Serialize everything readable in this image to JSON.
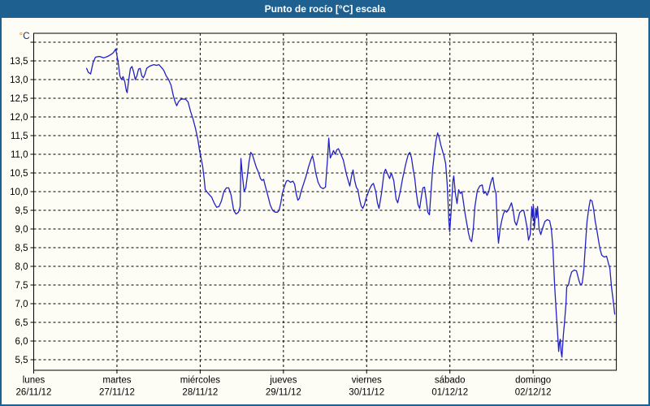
{
  "window": {
    "title": "Punto de rocío [°C] escala"
  },
  "chart_data": {
    "type": "line",
    "title": "Punto de rocío [°C] escala",
    "unit_label": "°C",
    "unit_degree_color": "#c87e1e",
    "unit_letter_color": "#1d2a66",
    "line_color": "#2121c4",
    "grid_color": "#000000",
    "text_color": "#000000",
    "background_color": "#fdfdf6",
    "frame_color": "#1e6191",
    "grid_style": "dashed",
    "ylabel": "°C",
    "ylim": [
      5.22,
      14.24
    ],
    "xlim_days": [
      0,
      7
    ],
    "y_axis": {
      "top_tick": 14.0,
      "bottom_tick": 5.5,
      "step": 0.5,
      "max_labeled": 13.5,
      "decimal_separator": ","
    },
    "x_days": [
      {
        "name": "lunes",
        "date": "26/11/12"
      },
      {
        "name": "martes",
        "date": "27/11/12"
      },
      {
        "name": "miércoles",
        "date": "28/11/12"
      },
      {
        "name": "jueves",
        "date": "29/11/12"
      },
      {
        "name": "viernes",
        "date": "30/11/12"
      },
      {
        "name": "sábado",
        "date": "01/12/12"
      },
      {
        "name": "domingo",
        "date": "02/12/12"
      }
    ],
    "series": [
      {
        "name": "Punto de rocío",
        "points": [
          [
            0.635,
            13.3
          ],
          [
            0.654,
            13.2
          ],
          [
            0.683,
            13.15
          ],
          [
            0.713,
            13.45
          ],
          [
            0.742,
            13.6
          ],
          [
            0.791,
            13.62
          ],
          [
            0.84,
            13.58
          ],
          [
            0.888,
            13.62
          ],
          [
            0.927,
            13.67
          ],
          [
            0.957,
            13.72
          ],
          [
            0.986,
            13.82
          ],
          [
            1.015,
            13.45
          ],
          [
            1.035,
            13.1
          ],
          [
            1.054,
            13.0
          ],
          [
            1.074,
            13.08
          ],
          [
            1.093,
            12.95
          ],
          [
            1.113,
            12.7
          ],
          [
            1.123,
            12.65
          ],
          [
            1.142,
            13.0
          ],
          [
            1.162,
            13.3
          ],
          [
            1.181,
            13.35
          ],
          [
            1.201,
            13.2
          ],
          [
            1.22,
            13.0
          ],
          [
            1.24,
            13.1
          ],
          [
            1.259,
            13.28
          ],
          [
            1.279,
            13.3
          ],
          [
            1.298,
            13.1
          ],
          [
            1.318,
            13.05
          ],
          [
            1.337,
            13.15
          ],
          [
            1.357,
            13.3
          ],
          [
            1.386,
            13.35
          ],
          [
            1.416,
            13.38
          ],
          [
            1.445,
            13.4
          ],
          [
            1.474,
            13.38
          ],
          [
            1.503,
            13.4
          ],
          [
            1.533,
            13.33
          ],
          [
            1.562,
            13.25
          ],
          [
            1.591,
            13.1
          ],
          [
            1.62,
            13.0
          ],
          [
            1.65,
            12.85
          ],
          [
            1.679,
            12.55
          ],
          [
            1.699,
            12.4
          ],
          [
            1.718,
            12.3
          ],
          [
            1.738,
            12.4
          ],
          [
            1.767,
            12.47
          ],
          [
            1.796,
            12.48
          ],
          [
            1.826,
            12.47
          ],
          [
            1.855,
            12.4
          ],
          [
            1.884,
            12.15
          ],
          [
            1.913,
            11.95
          ],
          [
            1.943,
            11.7
          ],
          [
            1.972,
            11.4
          ],
          [
            1.992,
            11.1
          ],
          [
            2.011,
            10.9
          ],
          [
            2.031,
            10.65
          ],
          [
            2.05,
            10.3
          ],
          [
            2.06,
            10.06
          ],
          [
            2.079,
            10.0
          ],
          [
            2.109,
            9.92
          ],
          [
            2.138,
            9.85
          ],
          [
            2.167,
            9.7
          ],
          [
            2.197,
            9.58
          ],
          [
            2.226,
            9.6
          ],
          [
            2.255,
            9.75
          ],
          [
            2.284,
            10.0
          ],
          [
            2.314,
            10.1
          ],
          [
            2.343,
            10.1
          ],
          [
            2.372,
            9.9
          ],
          [
            2.402,
            9.5
          ],
          [
            2.431,
            9.4
          ],
          [
            2.46,
            9.45
          ],
          [
            2.48,
            9.6
          ],
          [
            2.489,
            10.89
          ],
          [
            2.509,
            10.4
          ],
          [
            2.528,
            10.0
          ],
          [
            2.548,
            10.1
          ],
          [
            2.568,
            10.45
          ],
          [
            2.587,
            10.8
          ],
          [
            2.607,
            11.05
          ],
          [
            2.626,
            11.0
          ],
          [
            2.646,
            10.85
          ],
          [
            2.675,
            10.65
          ],
          [
            2.694,
            10.55
          ],
          [
            2.724,
            10.35
          ],
          [
            2.743,
            10.3
          ],
          [
            2.763,
            10.33
          ],
          [
            2.782,
            10.15
          ],
          [
            2.812,
            9.9
          ],
          [
            2.841,
            9.65
          ],
          [
            2.87,
            9.5
          ],
          [
            2.9,
            9.45
          ],
          [
            2.929,
            9.45
          ],
          [
            2.948,
            9.5
          ],
          [
            2.968,
            9.7
          ],
          [
            2.987,
            9.95
          ],
          [
            3.007,
            10.1
          ],
          [
            3.036,
            10.28
          ],
          [
            3.056,
            10.3
          ],
          [
            3.085,
            10.25
          ],
          [
            3.114,
            10.28
          ],
          [
            3.134,
            10.2
          ],
          [
            3.153,
            9.95
          ],
          [
            3.173,
            9.77
          ],
          [
            3.192,
            9.82
          ],
          [
            3.212,
            10.0
          ],
          [
            3.241,
            10.2
          ],
          [
            3.27,
            10.4
          ],
          [
            3.3,
            10.65
          ],
          [
            3.329,
            10.85
          ],
          [
            3.349,
            10.96
          ],
          [
            3.368,
            10.78
          ],
          [
            3.388,
            10.5
          ],
          [
            3.417,
            10.25
          ],
          [
            3.446,
            10.12
          ],
          [
            3.476,
            10.08
          ],
          [
            3.505,
            10.12
          ],
          [
            3.534,
            11.0
          ],
          [
            3.544,
            11.43
          ],
          [
            3.563,
            10.9
          ],
          [
            3.583,
            11.0
          ],
          [
            3.602,
            11.1
          ],
          [
            3.622,
            11.0
          ],
          [
            3.641,
            11.12
          ],
          [
            3.661,
            11.15
          ],
          [
            3.68,
            11.05
          ],
          [
            3.7,
            10.95
          ],
          [
            3.719,
            10.85
          ],
          [
            3.739,
            10.65
          ],
          [
            3.758,
            10.45
          ],
          [
            3.778,
            10.3
          ],
          [
            3.797,
            10.15
          ],
          [
            3.817,
            10.4
          ],
          [
            3.836,
            10.58
          ],
          [
            3.856,
            10.3
          ],
          [
            3.875,
            10.12
          ],
          [
            3.895,
            10.05
          ],
          [
            3.914,
            9.8
          ],
          [
            3.934,
            9.62
          ],
          [
            3.953,
            9.55
          ],
          [
            3.973,
            9.65
          ],
          [
            3.992,
            9.82
          ],
          [
            4.032,
            10.05
          ],
          [
            4.061,
            10.18
          ],
          [
            4.081,
            10.22
          ],
          [
            4.11,
            10.0
          ],
          [
            4.129,
            9.7
          ],
          [
            4.149,
            9.55
          ],
          [
            4.178,
            9.95
          ],
          [
            4.208,
            10.5
          ],
          [
            4.227,
            10.6
          ],
          [
            4.256,
            10.45
          ],
          [
            4.276,
            10.35
          ],
          [
            4.296,
            10.5
          ],
          [
            4.325,
            10.3
          ],
          [
            4.354,
            9.8
          ],
          [
            4.373,
            9.7
          ],
          [
            4.403,
            10.0
          ],
          [
            4.432,
            10.35
          ],
          [
            4.471,
            10.75
          ],
          [
            4.5,
            11.0
          ],
          [
            4.52,
            11.05
          ],
          [
            4.539,
            10.9
          ],
          [
            4.559,
            10.6
          ],
          [
            4.578,
            10.35
          ],
          [
            4.598,
            9.95
          ],
          [
            4.617,
            9.65
          ],
          [
            4.637,
            9.55
          ],
          [
            4.656,
            9.85
          ],
          [
            4.676,
            10.1
          ],
          [
            4.695,
            10.12
          ],
          [
            4.715,
            9.8
          ],
          [
            4.734,
            9.45
          ],
          [
            4.754,
            9.38
          ],
          [
            4.773,
            10.0
          ],
          [
            4.793,
            10.6
          ],
          [
            4.812,
            11.0
          ],
          [
            4.832,
            11.35
          ],
          [
            4.852,
            11.57
          ],
          [
            4.871,
            11.45
          ],
          [
            4.891,
            11.25
          ],
          [
            4.91,
            11.1
          ],
          [
            4.93,
            10.95
          ],
          [
            4.949,
            10.75
          ],
          [
            4.968,
            10.2
          ],
          [
            4.978,
            9.7
          ],
          [
            4.988,
            9.2
          ],
          [
            4.998,
            8.92
          ],
          [
            5.018,
            9.6
          ],
          [
            5.037,
            10.3
          ],
          [
            5.047,
            10.42
          ],
          [
            5.066,
            9.95
          ],
          [
            5.086,
            9.68
          ],
          [
            5.105,
            10.05
          ],
          [
            5.125,
            9.95
          ],
          [
            5.144,
            10.0
          ],
          [
            5.164,
            9.7
          ],
          [
            5.183,
            9.4
          ],
          [
            5.203,
            9.15
          ],
          [
            5.222,
            8.9
          ],
          [
            5.242,
            8.72
          ],
          [
            5.261,
            8.66
          ],
          [
            5.281,
            9.0
          ],
          [
            5.301,
            9.6
          ],
          [
            5.33,
            10.03
          ],
          [
            5.359,
            10.15
          ],
          [
            5.388,
            10.18
          ],
          [
            5.408,
            9.95
          ],
          [
            5.427,
            10.0
          ],
          [
            5.447,
            9.9
          ],
          [
            5.466,
            10.0
          ],
          [
            5.486,
            10.2
          ],
          [
            5.506,
            10.35
          ],
          [
            5.516,
            10.38
          ],
          [
            5.535,
            10.1
          ],
          [
            5.554,
            9.95
          ],
          [
            5.574,
            8.9
          ],
          [
            5.584,
            8.62
          ],
          [
            5.603,
            9.0
          ],
          [
            5.623,
            9.22
          ],
          [
            5.642,
            9.4
          ],
          [
            5.662,
            9.5
          ],
          [
            5.681,
            9.45
          ],
          [
            5.701,
            9.5
          ],
          [
            5.721,
            9.6
          ],
          [
            5.74,
            9.7
          ],
          [
            5.76,
            9.5
          ],
          [
            5.779,
            9.2
          ],
          [
            5.799,
            9.1
          ],
          [
            5.818,
            9.25
          ],
          [
            5.838,
            9.44
          ],
          [
            5.857,
            9.48
          ],
          [
            5.887,
            9.5
          ],
          [
            5.906,
            9.3
          ],
          [
            5.926,
            9.05
          ],
          [
            5.945,
            8.7
          ],
          [
            5.965,
            8.85
          ],
          [
            5.984,
            9.6
          ],
          [
            5.994,
            9.3
          ],
          [
            6.004,
            9.62
          ],
          [
            6.014,
            9.0
          ],
          [
            6.033,
            9.55
          ],
          [
            6.043,
            9.3
          ],
          [
            6.053,
            9.6
          ],
          [
            6.072,
            9.0
          ],
          [
            6.092,
            8.85
          ],
          [
            6.111,
            9.0
          ],
          [
            6.141,
            9.2
          ],
          [
            6.17,
            9.25
          ],
          [
            6.199,
            9.22
          ],
          [
            6.219,
            9.0
          ],
          [
            6.238,
            8.5
          ],
          [
            6.258,
            7.5
          ],
          [
            6.277,
            6.8
          ],
          [
            6.297,
            6.1
          ],
          [
            6.307,
            5.72
          ],
          [
            6.316,
            5.95
          ],
          [
            6.326,
            6.05
          ],
          [
            6.336,
            5.7
          ],
          [
            6.346,
            5.57
          ],
          [
            6.365,
            6.2
          ],
          [
            6.375,
            6.45
          ],
          [
            6.395,
            7.0
          ],
          [
            6.404,
            7.45
          ],
          [
            6.424,
            7.5
          ],
          [
            6.443,
            7.7
          ],
          [
            6.463,
            7.85
          ],
          [
            6.492,
            7.9
          ],
          [
            6.521,
            7.88
          ],
          [
            6.551,
            7.62
          ],
          [
            6.57,
            7.5
          ],
          [
            6.59,
            7.55
          ],
          [
            6.609,
            7.9
          ],
          [
            6.629,
            8.6
          ],
          [
            6.648,
            9.2
          ],
          [
            6.668,
            9.55
          ],
          [
            6.687,
            9.78
          ],
          [
            6.707,
            9.75
          ],
          [
            6.726,
            9.55
          ],
          [
            6.746,
            9.2
          ],
          [
            6.766,
            8.97
          ],
          [
            6.785,
            8.7
          ],
          [
            6.805,
            8.45
          ],
          [
            6.824,
            8.3
          ],
          [
            6.853,
            8.25
          ],
          [
            6.883,
            8.27
          ],
          [
            6.902,
            8.1
          ],
          [
            6.922,
            7.95
          ],
          [
            6.941,
            7.45
          ],
          [
            6.961,
            7.1
          ],
          [
            6.98,
            6.72
          ]
        ]
      }
    ]
  }
}
